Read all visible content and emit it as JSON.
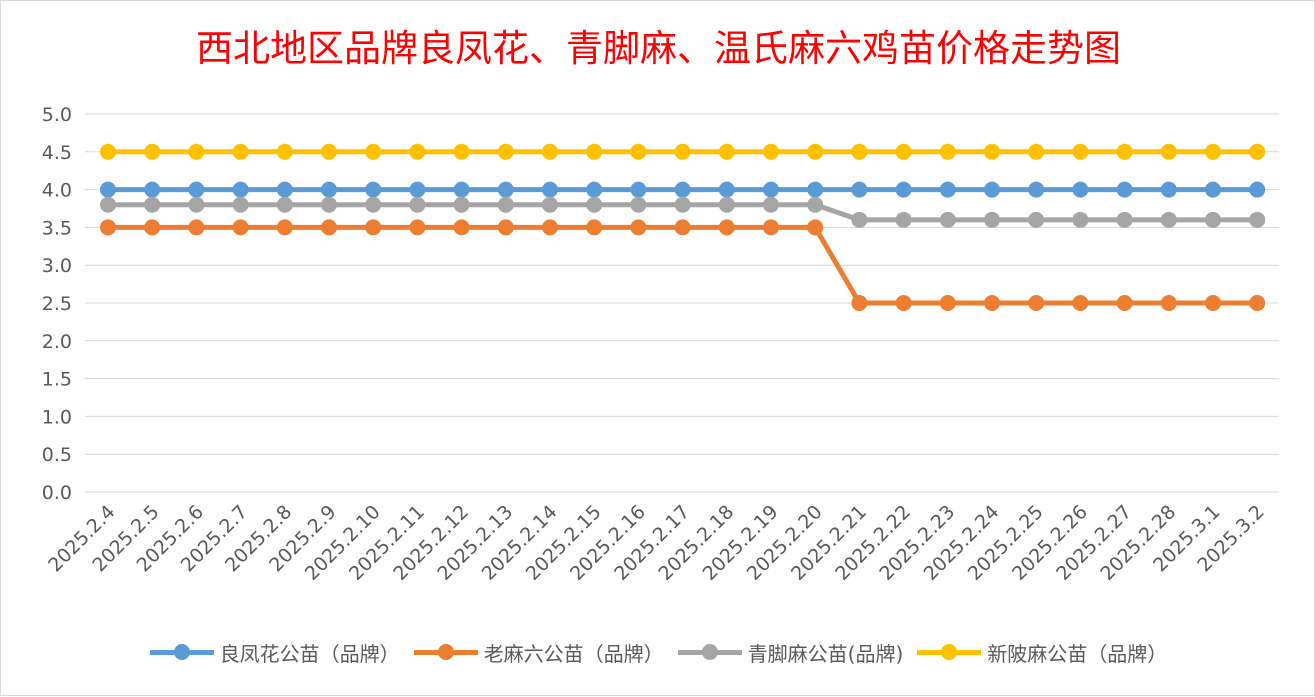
{
  "chart_data": {
    "type": "line",
    "title": "西北地区品牌良凤花、青脚麻、温氏麻六鸡苗价格走势图",
    "xlabel": "",
    "ylabel": "",
    "ylim": [
      0,
      5
    ],
    "yticks": [
      "0.0",
      "0.5",
      "1.0",
      "1.5",
      "2.0",
      "2.5",
      "3.0",
      "3.5",
      "4.0",
      "4.5",
      "5.0"
    ],
    "grid": true,
    "legend_position": "bottom",
    "categories": [
      "2025.2.4",
      "2025.2.5",
      "2025.2.6",
      "2025.2.7",
      "2025.2.8",
      "2025.2.9",
      "2025.2.10",
      "2025.2.11",
      "2025.2.12",
      "2025.2.13",
      "2025.2.14",
      "2025.2.15",
      "2025.2.16",
      "2025.2.17",
      "2025.2.18",
      "2025.2.19",
      "2025.2.20",
      "2025.2.21",
      "2025.2.22",
      "2025.2.23",
      "2025.2.24",
      "2025.2.25",
      "2025.2.26",
      "2025.2.27",
      "2025.2.28",
      "2025.3.1",
      "2025.3.2"
    ],
    "series": [
      {
        "name": "良凤花公苗（品牌）",
        "color": "#5b9bd5",
        "values": [
          4.0,
          4.0,
          4.0,
          4.0,
          4.0,
          4.0,
          4.0,
          4.0,
          4.0,
          4.0,
          4.0,
          4.0,
          4.0,
          4.0,
          4.0,
          4.0,
          4.0,
          4.0,
          4.0,
          4.0,
          4.0,
          4.0,
          4.0,
          4.0,
          4.0,
          4.0,
          4.0
        ]
      },
      {
        "name": "老麻六公苗（品牌）",
        "color": "#ed7d31",
        "values": [
          3.5,
          3.5,
          3.5,
          3.5,
          3.5,
          3.5,
          3.5,
          3.5,
          3.5,
          3.5,
          3.5,
          3.5,
          3.5,
          3.5,
          3.5,
          3.5,
          3.5,
          2.5,
          2.5,
          2.5,
          2.5,
          2.5,
          2.5,
          2.5,
          2.5,
          2.5,
          2.5
        ]
      },
      {
        "name": "青脚麻公苗(品牌)",
        "color": "#a5a5a5",
        "values": [
          3.8,
          3.8,
          3.8,
          3.8,
          3.8,
          3.8,
          3.8,
          3.8,
          3.8,
          3.8,
          3.8,
          3.8,
          3.8,
          3.8,
          3.8,
          3.8,
          3.8,
          3.6,
          3.6,
          3.6,
          3.6,
          3.6,
          3.6,
          3.6,
          3.6,
          3.6,
          3.6
        ]
      },
      {
        "name": "新陂麻公苗（品牌）",
        "color": "#ffc000",
        "values": [
          4.5,
          4.5,
          4.5,
          4.5,
          4.5,
          4.5,
          4.5,
          4.5,
          4.5,
          4.5,
          4.5,
          4.5,
          4.5,
          4.5,
          4.5,
          4.5,
          4.5,
          4.5,
          4.5,
          4.5,
          4.5,
          4.5,
          4.5,
          4.5,
          4.5,
          4.5,
          4.5
        ]
      }
    ]
  }
}
